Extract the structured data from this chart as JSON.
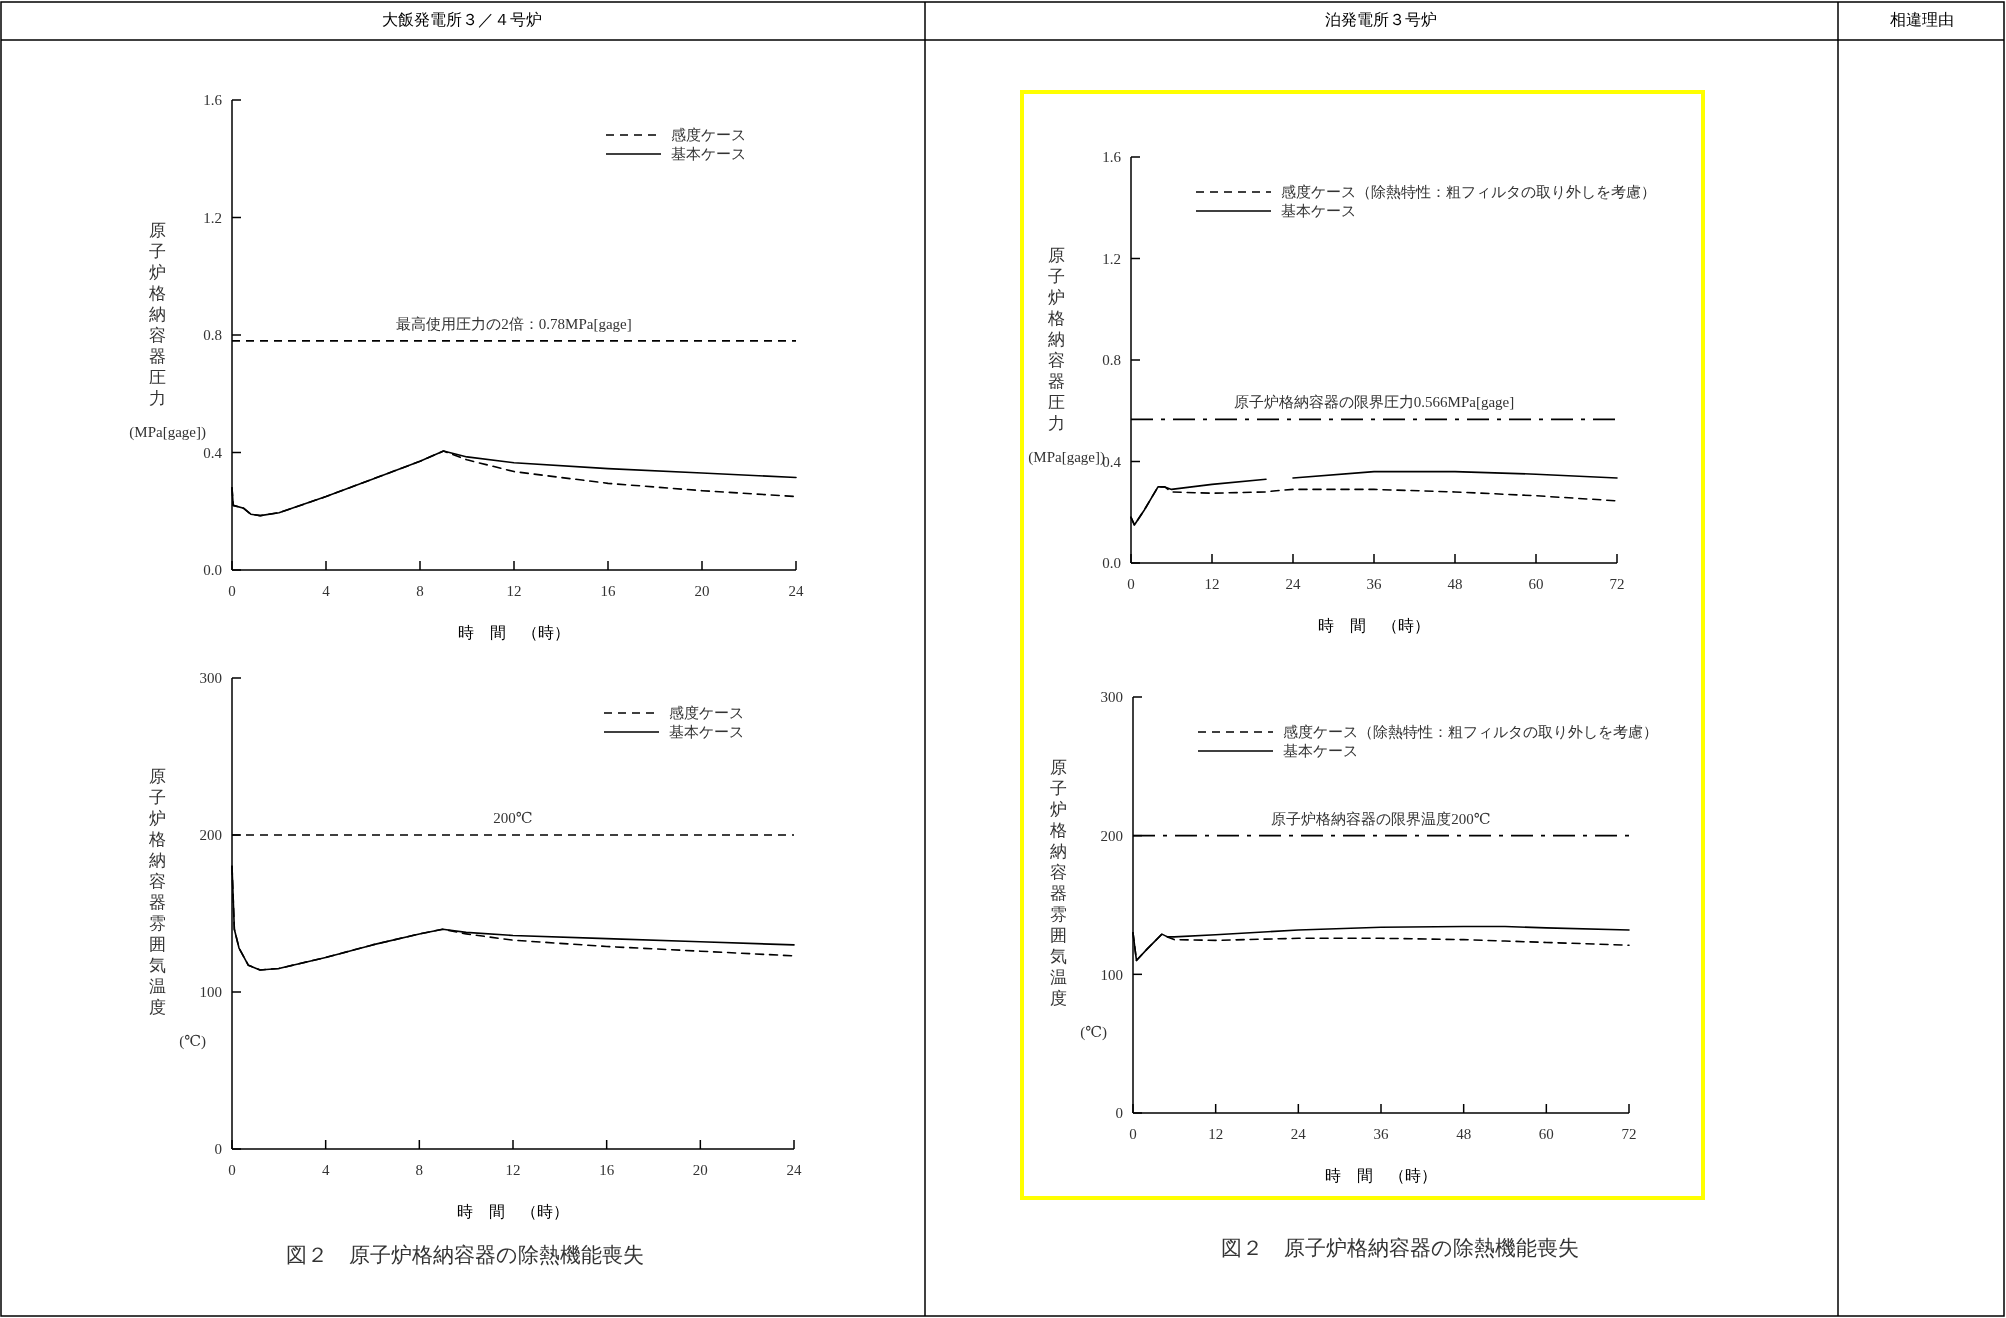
{
  "chart_data": [
    {
      "type": "line",
      "title": "大飯発電所３／４号炉",
      "xlabel": "時　間　（時）",
      "ylabel": "原子炉格納容器圧力(MPa[gage])",
      "xlim": [
        0,
        24
      ],
      "ylim": [
        0,
        1.6
      ],
      "xticks": [
        0,
        4,
        8,
        12,
        16,
        20,
        24
      ],
      "yticks": [
        {
          "value": 0,
          "label": "0.0"
        },
        0.4,
        0.8,
        1.2,
        1.6
      ],
      "legend": "top right",
      "x": [
        0,
        0.05,
        0.5,
        0.8,
        1.2,
        2,
        4,
        6,
        8,
        9,
        10,
        12,
        16,
        20,
        24
      ],
      "series": [
        {
          "name": "感度ケース",
          "color": "#000000",
          "line_style": "dashed",
          "values": [
            0.28,
            0.22,
            0.21,
            0.19,
            0.185,
            0.195,
            0.25,
            0.31,
            0.37,
            0.405,
            0.375,
            0.335,
            0.295,
            0.27,
            0.25
          ]
        },
        {
          "name": "基本ケース",
          "color": "#000000",
          "line_style": "solid",
          "values": [
            0.28,
            0.22,
            0.21,
            0.19,
            0.185,
            0.195,
            0.25,
            0.31,
            0.37,
            0.405,
            0.385,
            0.365,
            0.345,
            0.33,
            0.315
          ]
        }
      ],
      "ref_lines": [
        {
          "axis": "y",
          "value": 0.78,
          "label": "最高使用圧力の2倍：0.78MPa[gage]",
          "color": "#000000",
          "line_style": "dashed"
        }
      ]
    },
    {
      "type": "line",
      "xlabel": "時　間　（時）",
      "ylabel": "原子炉格納容器雰囲気温度(℃)",
      "xlim": [
        0,
        24
      ],
      "ylim": [
        0,
        300
      ],
      "xticks": [
        0,
        4,
        8,
        12,
        16,
        20,
        24
      ],
      "yticks": [
        0,
        100,
        200,
        300
      ],
      "legend": "top right",
      "x": [
        0,
        0.1,
        0.3,
        0.7,
        1.2,
        2,
        4,
        6,
        8,
        9,
        10,
        12,
        16,
        20,
        24
      ],
      "series": [
        {
          "name": "感度ケース",
          "color": "#000000",
          "line_style": "dashed",
          "values": [
            180,
            140,
            128,
            117,
            114,
            115,
            122,
            130,
            137,
            140,
            137,
            133,
            129,
            126,
            123
          ]
        },
        {
          "name": "基本ケース",
          "color": "#000000",
          "line_style": "solid",
          "values": [
            180,
            140,
            128,
            117,
            114,
            115,
            122,
            130,
            137,
            140,
            138,
            136,
            134,
            132,
            130
          ]
        }
      ],
      "ref_lines": [
        {
          "axis": "y",
          "value": 200,
          "label": "200℃",
          "color": "#000000",
          "line_style": "dashed"
        }
      ],
      "annotations": [
        "図２　原子炉格納容器の除熱機能喪失"
      ]
    },
    {
      "type": "line",
      "title": "泊発電所３号炉",
      "xlabel": "時　間　（時）",
      "ylabel": "原子炉格納容器圧力(MPa[gage])",
      "xlim": [
        0,
        72
      ],
      "ylim": [
        0,
        1.6
      ],
      "xticks": [
        0,
        12,
        24,
        36,
        48,
        60,
        72
      ],
      "yticks": [
        {
          "value": 0,
          "label": "0.0"
        },
        0.4,
        0.8,
        1.2,
        1.6
      ],
      "legend": "top",
      "x": [
        0,
        0.5,
        2,
        4,
        5,
        6,
        12,
        20,
        21.5,
        24,
        36,
        48,
        60,
        72
      ],
      "series": [
        {
          "name": "感度ケース（除熱特性：粗フィルタの取り外しを考慮）",
          "color": "#000000",
          "line_style": "dashed",
          "values": [
            0.18,
            0.15,
            0.21,
            0.3,
            0.3,
            0.28,
            0.275,
            0.28,
            0.285,
            0.29,
            0.29,
            0.28,
            0.265,
            0.245
          ]
        },
        {
          "name": "基本ケース",
          "color": "#000000",
          "line_style": "solid",
          "values": [
            0.18,
            0.15,
            0.21,
            0.3,
            0.3,
            0.29,
            0.31,
            0.33,
            null,
            0.335,
            0.36,
            0.36,
            0.35,
            0.335
          ]
        }
      ],
      "ref_lines": [
        {
          "axis": "y",
          "value": 0.566,
          "label": "原子炉格納容器の限界圧力0.566MPa[gage]",
          "color": "#000000",
          "line_style": "dashdot"
        }
      ]
    },
    {
      "type": "line",
      "xlabel": "時　間　（時）",
      "ylabel": "原子炉格納容器雰囲気温度(℃)",
      "xlim": [
        0,
        72
      ],
      "ylim": [
        0,
        300
      ],
      "xticks": [
        0,
        12,
        24,
        36,
        48,
        60,
        72
      ],
      "yticks": [
        0,
        100,
        200,
        300
      ],
      "legend": "top",
      "x": [
        0,
        0.5,
        2,
        4.2,
        5,
        6,
        12,
        24,
        36,
        48,
        54,
        60,
        72
      ],
      "series": [
        {
          "name": "感度ケース（除熱特性：粗フィルタの取り外しを考慮）",
          "color": "#000000",
          "line_style": "dashed",
          "values": [
            130,
            110,
            118,
            129,
            127,
            125,
            124.5,
            126,
            126,
            125,
            124,
            123,
            121
          ]
        },
        {
          "name": "基本ケース",
          "color": "#000000",
          "line_style": "solid",
          "values": [
            130,
            110,
            118,
            129,
            127,
            127,
            128.5,
            132,
            134,
            134.5,
            134.5,
            133.5,
            132
          ]
        }
      ],
      "ref_lines": [
        {
          "axis": "y",
          "value": 200,
          "label": "原子炉格納容器の限界温度200℃",
          "color": "#000000",
          "line_style": "dashdot"
        }
      ],
      "annotations": [
        "図２　原子炉格納容器の除熱機能喪失"
      ]
    },
    {
      "type": "other",
      "title": "相違理由"
    }
  ]
}
